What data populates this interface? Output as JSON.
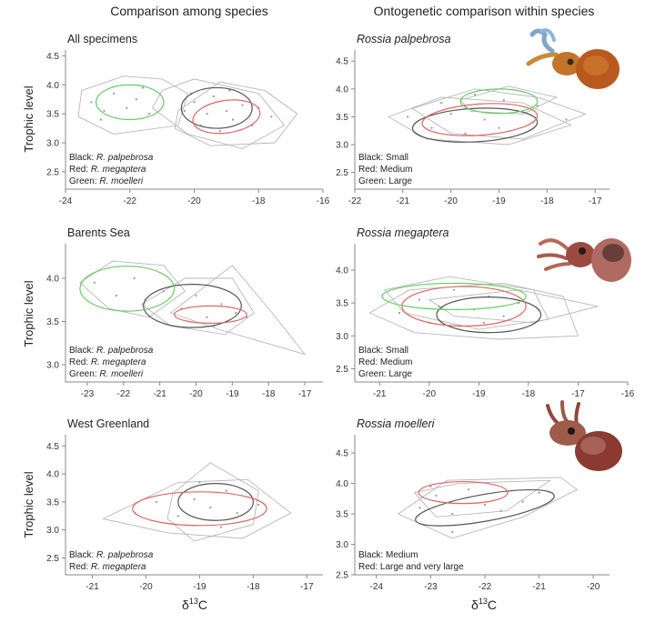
{
  "header": {
    "left_title": "Comparison among species",
    "right_title": "Ontogenetic comparison within species"
  },
  "axis": {
    "y_label": "Trophic level",
    "x_label_main": "δ",
    "x_label_sup": "13",
    "x_label_tail": "C"
  },
  "colors": {
    "black": "#555555",
    "red": "#e06666",
    "green": "#66cc66",
    "hull": "#b8b8b8",
    "points": "#999999",
    "axis": "#888888"
  },
  "chart_data": [
    {
      "id": "all",
      "type": "scatter",
      "title": "All specimens",
      "title_italic": false,
      "xlim": [
        -24,
        -16
      ],
      "xticks": [
        -24,
        -22,
        -20,
        -18,
        -16
      ],
      "xtick_labels": [
        "-24",
        "-22",
        "-20",
        "-18",
        "-16"
      ],
      "ylim": [
        2.2,
        4.6
      ],
      "yticks": [
        2.5,
        3.0,
        3.5,
        4.0,
        4.5
      ],
      "ytick_labels": [
        "2.5",
        "3.0",
        "3.5",
        "4.0",
        "4.5"
      ],
      "legend": [
        "Black: R. palpebrosa",
        "Red: R. megaptera",
        "Green: R. moelleri"
      ],
      "series": [
        {
          "name": "R. palpebrosa",
          "color": "black",
          "ellipse": {
            "cx": -19.3,
            "cy": 3.6,
            "rx": 1.1,
            "ry": 0.35,
            "rot": 0
          }
        },
        {
          "name": "R. megaptera",
          "color": "red",
          "ellipse": {
            "cx": -19.0,
            "cy": 3.45,
            "rx": 1.05,
            "ry": 0.28,
            "rot": -8
          }
        },
        {
          "name": "R. moelleri",
          "color": "green",
          "ellipse": {
            "cx": -22.0,
            "cy": 3.7,
            "rx": 1.05,
            "ry": 0.3,
            "rot": 0
          }
        }
      ],
      "hulls": [
        [
          [
            -23.5,
            3.9
          ],
          [
            -22.2,
            4.15
          ],
          [
            -21.0,
            4.1
          ],
          [
            -20.2,
            3.85
          ],
          [
            -20.5,
            3.3
          ],
          [
            -22.5,
            3.15
          ],
          [
            -23.6,
            3.45
          ]
        ],
        [
          [
            -21.0,
            3.9
          ],
          [
            -20.0,
            4.1
          ],
          [
            -18.0,
            3.85
          ],
          [
            -17.2,
            3.3
          ],
          [
            -18.5,
            2.9
          ],
          [
            -20.2,
            3.15
          ],
          [
            -21.3,
            3.6
          ]
        ],
        [
          [
            -20.5,
            3.55
          ],
          [
            -19.2,
            4.05
          ],
          [
            -17.8,
            3.9
          ],
          [
            -16.8,
            3.5
          ],
          [
            -17.5,
            3.0
          ],
          [
            -19.5,
            2.95
          ],
          [
            -20.6,
            3.25
          ]
        ]
      ],
      "points": [
        [
          -23.2,
          3.7
        ],
        [
          -22.8,
          3.55
        ],
        [
          -22.5,
          3.85
        ],
        [
          -22.1,
          3.6
        ],
        [
          -21.8,
          3.75
        ],
        [
          -21.4,
          3.5
        ],
        [
          -21.6,
          3.95
        ],
        [
          -22.9,
          3.4
        ],
        [
          -20.0,
          3.7
        ],
        [
          -19.6,
          3.5
        ],
        [
          -19.4,
          3.8
        ],
        [
          -19.0,
          3.55
        ],
        [
          -18.8,
          3.4
        ],
        [
          -18.5,
          3.65
        ],
        [
          -18.2,
          3.3
        ],
        [
          -19.8,
          3.3
        ],
        [
          -20.3,
          3.55
        ],
        [
          -18.9,
          3.9
        ],
        [
          -18.0,
          3.6
        ],
        [
          -17.6,
          3.45
        ],
        [
          -19.2,
          3.2
        ],
        [
          -20.1,
          3.85
        ]
      ]
    },
    {
      "id": "palpebrosa",
      "type": "scatter",
      "title": "Rossia palpebrosa",
      "title_italic": true,
      "xlim": [
        -22,
        -16.7
      ],
      "xticks": [
        -22,
        -21,
        -20,
        -19,
        -18,
        -17
      ],
      "xtick_labels": [
        "-22",
        "-21",
        "-20",
        "-19",
        "-18",
        "-17"
      ],
      "ylim": [
        2.2,
        4.7
      ],
      "yticks": [
        2.5,
        3.0,
        3.5,
        4.0,
        4.5
      ],
      "ytick_labels": [
        "2.5",
        "3.0",
        "3.5",
        "4.0",
        "4.5"
      ],
      "legend": [
        "Black: Small",
        "Red: Medium",
        "Green: Large"
      ],
      "series": [
        {
          "name": "Small",
          "color": "black",
          "ellipse": {
            "cx": -19.5,
            "cy": 3.35,
            "rx": 1.3,
            "ry": 0.3,
            "rot": -3
          }
        },
        {
          "name": "Medium",
          "color": "red",
          "ellipse": {
            "cx": -19.4,
            "cy": 3.45,
            "rx": 1.2,
            "ry": 0.28,
            "rot": -4
          }
        },
        {
          "name": "Large",
          "color": "green",
          "ellipse": {
            "cx": -19.0,
            "cy": 3.78,
            "rx": 0.8,
            "ry": 0.22,
            "rot": 0
          }
        }
      ],
      "hulls": [
        [
          [
            -21.3,
            3.5
          ],
          [
            -20.2,
            3.85
          ],
          [
            -18.5,
            3.75
          ],
          [
            -17.5,
            3.35
          ],
          [
            -18.8,
            3.0
          ],
          [
            -20.5,
            3.1
          ]
        ],
        [
          [
            -20.8,
            3.65
          ],
          [
            -19.5,
            4.0
          ],
          [
            -18.2,
            3.85
          ],
          [
            -17.2,
            3.55
          ],
          [
            -18.5,
            3.1
          ],
          [
            -20.0,
            3.2
          ]
        ],
        [
          [
            -19.8,
            3.8
          ],
          [
            -18.8,
            4.05
          ],
          [
            -17.8,
            3.85
          ],
          [
            -18.5,
            3.55
          ],
          [
            -19.6,
            3.6
          ]
        ]
      ],
      "points": [
        [
          -20.9,
          3.5
        ],
        [
          -20.4,
          3.3
        ],
        [
          -20.0,
          3.55
        ],
        [
          -19.7,
          3.2
        ],
        [
          -19.3,
          3.45
        ],
        [
          -19.0,
          3.3
        ],
        [
          -18.6,
          3.6
        ],
        [
          -18.3,
          3.4
        ],
        [
          -20.2,
          3.75
        ],
        [
          -19.5,
          3.9
        ],
        [
          -18.9,
          3.8
        ],
        [
          -18.2,
          3.7
        ],
        [
          -17.6,
          3.45
        ]
      ]
    },
    {
      "id": "barents",
      "type": "scatter",
      "title": "Barents Sea",
      "title_italic": false,
      "xlim": [
        -23.6,
        -16.5
      ],
      "xticks": [
        -23,
        -22,
        -21,
        -20,
        -19,
        -18,
        -17
      ],
      "xtick_labels": [
        "-23",
        "-22",
        "-21",
        "-20",
        "-19",
        "-18",
        "-17"
      ],
      "ylim": [
        2.8,
        4.4
      ],
      "yticks": [
        3.0,
        3.5,
        4.0
      ],
      "ytick_labels": [
        "3.0",
        "3.5",
        "4.0"
      ],
      "legend": [
        "Black: R. palpebrosa",
        "Red: R. megaptera",
        "Green: R. moelleri"
      ],
      "series": [
        {
          "name": "R. palpebrosa",
          "color": "black",
          "ellipse": {
            "cx": -20.1,
            "cy": 3.68,
            "rx": 1.35,
            "ry": 0.25,
            "rot": 0
          }
        },
        {
          "name": "R. megaptera",
          "color": "red",
          "ellipse": {
            "cx": -19.6,
            "cy": 3.58,
            "rx": 1.0,
            "ry": 0.1,
            "rot": 0
          }
        },
        {
          "name": "R. moelleri",
          "color": "green",
          "ellipse": {
            "cx": -21.9,
            "cy": 3.88,
            "rx": 1.3,
            "ry": 0.26,
            "rot": 0
          }
        }
      ],
      "hulls": [
        [
          [
            -23.2,
            3.95
          ],
          [
            -22.3,
            4.2
          ],
          [
            -20.9,
            4.15
          ],
          [
            -20.3,
            3.85
          ],
          [
            -21.3,
            3.55
          ],
          [
            -22.4,
            3.65
          ]
        ],
        [
          [
            -21.5,
            3.7
          ],
          [
            -20.3,
            4.0
          ],
          [
            -19.0,
            4.0
          ],
          [
            -18.4,
            3.6
          ],
          [
            -19.2,
            3.35
          ],
          [
            -20.7,
            3.45
          ]
        ],
        [
          [
            -20.7,
            3.6
          ],
          [
            -19.0,
            4.15
          ],
          [
            -17.9,
            3.6
          ],
          [
            -17.0,
            3.12
          ],
          [
            -19.3,
            3.4
          ]
        ]
      ],
      "points": [
        [
          -22.8,
          3.95
        ],
        [
          -22.2,
          3.8
        ],
        [
          -21.7,
          4.0
        ],
        [
          -21.4,
          3.75
        ],
        [
          -20.9,
          3.85
        ],
        [
          -20.4,
          3.65
        ],
        [
          -20.0,
          3.8
        ],
        [
          -19.7,
          3.55
        ],
        [
          -19.3,
          3.7
        ],
        [
          -18.9,
          3.6
        ],
        [
          -18.6,
          3.55
        ],
        [
          -19.5,
          3.45
        ]
      ]
    },
    {
      "id": "megaptera",
      "type": "scatter",
      "title": "Rossia megaptera",
      "title_italic": true,
      "xlim": [
        -21.5,
        -16
      ],
      "xticks": [
        -21,
        -20,
        -19,
        -18,
        -17,
        -16
      ],
      "xtick_labels": [
        "-21",
        "-20",
        "-19",
        "-18",
        "-17",
        "-16"
      ],
      "ylim": [
        2.3,
        4.4
      ],
      "yticks": [
        2.5,
        3.0,
        3.5,
        4.0
      ],
      "ytick_labels": [
        "2.5",
        "3.0",
        "3.5",
        "4.0"
      ],
      "legend": [
        "Black: Small",
        "Red: Medium",
        "Green: Large"
      ],
      "series": [
        {
          "name": "Small",
          "color": "black",
          "ellipse": {
            "cx": -18.8,
            "cy": 3.32,
            "rx": 1.05,
            "ry": 0.27,
            "rot": 0
          }
        },
        {
          "name": "Medium",
          "color": "red",
          "ellipse": {
            "cx": -19.3,
            "cy": 3.45,
            "rx": 1.25,
            "ry": 0.3,
            "rot": 0
          }
        },
        {
          "name": "Large",
          "color": "green",
          "ellipse": {
            "cx": -19.5,
            "cy": 3.6,
            "rx": 1.45,
            "ry": 0.2,
            "rot": 0
          }
        }
      ],
      "hulls": [
        [
          [
            -21.2,
            3.35
          ],
          [
            -20.4,
            3.7
          ],
          [
            -18.5,
            3.8
          ],
          [
            -17.3,
            3.6
          ],
          [
            -17.0,
            3.0
          ],
          [
            -18.6,
            2.95
          ],
          [
            -20.3,
            3.05
          ]
        ],
        [
          [
            -20.9,
            3.7
          ],
          [
            -19.6,
            3.9
          ],
          [
            -17.9,
            3.7
          ],
          [
            -17.6,
            3.25
          ],
          [
            -19.0,
            3.1
          ],
          [
            -20.5,
            3.35
          ]
        ],
        [
          [
            -20.0,
            3.55
          ],
          [
            -18.2,
            3.7
          ],
          [
            -16.6,
            3.45
          ],
          [
            -17.9,
            3.2
          ],
          [
            -19.5,
            3.3
          ]
        ]
      ],
      "points": [
        [
          -20.6,
          3.35
        ],
        [
          -20.2,
          3.55
        ],
        [
          -19.8,
          3.45
        ],
        [
          -19.5,
          3.7
        ],
        [
          -19.1,
          3.4
        ],
        [
          -18.8,
          3.6
        ],
        [
          -18.5,
          3.3
        ],
        [
          -18.2,
          3.5
        ],
        [
          -17.8,
          3.4
        ],
        [
          -19.4,
          3.15
        ],
        [
          -18.9,
          3.2
        ],
        [
          -20.0,
          3.2
        ]
      ]
    },
    {
      "id": "greenland",
      "type": "scatter",
      "title": "West Greenland",
      "title_italic": false,
      "xlim": [
        -21.5,
        -16.7
      ],
      "xticks": [
        -21,
        -20,
        -19,
        -18,
        -17
      ],
      "xtick_labels": [
        "-21",
        "-20",
        "-19",
        "-18",
        "-17"
      ],
      "ylim": [
        2.2,
        4.7
      ],
      "yticks": [
        2.5,
        3.0,
        3.5,
        4.0,
        4.5
      ],
      "ytick_labels": [
        "2.5",
        "3.0",
        "3.5",
        "4.0",
        "4.5"
      ],
      "legend": [
        "Black: R. palpebrosa",
        "Red: R. megaptera"
      ],
      "series": [
        {
          "name": "R. palpebrosa",
          "color": "black",
          "ellipse": {
            "cx": -18.7,
            "cy": 3.5,
            "rx": 0.7,
            "ry": 0.33,
            "rot": 0
          }
        },
        {
          "name": "R. megaptera",
          "color": "red",
          "ellipse": {
            "cx": -19.0,
            "cy": 3.38,
            "rx": 1.25,
            "ry": 0.3,
            "rot": 0
          }
        }
      ],
      "hulls": [
        [
          [
            -20.8,
            3.2
          ],
          [
            -19.4,
            3.85
          ],
          [
            -18.1,
            3.9
          ],
          [
            -17.3,
            3.3
          ],
          [
            -18.2,
            2.85
          ],
          [
            -19.6,
            2.95
          ]
        ],
        [
          [
            -19.5,
            3.65
          ],
          [
            -18.8,
            4.2
          ],
          [
            -17.9,
            3.7
          ],
          [
            -18.0,
            3.1
          ],
          [
            -19.1,
            2.8
          ],
          [
            -19.6,
            3.2
          ]
        ]
      ],
      "points": [
        [
          -20.2,
          3.3
        ],
        [
          -19.8,
          3.5
        ],
        [
          -19.4,
          3.25
        ],
        [
          -19.1,
          3.55
        ],
        [
          -18.8,
          3.4
        ],
        [
          -18.5,
          3.7
        ],
        [
          -18.3,
          3.3
        ],
        [
          -18.6,
          3.05
        ],
        [
          -19.0,
          3.85
        ],
        [
          -17.9,
          3.45
        ]
      ]
    },
    {
      "id": "moelleri",
      "type": "scatter",
      "title": "Rossia moelleri",
      "title_italic": true,
      "xlim": [
        -24.4,
        -19.7
      ],
      "xticks": [
        -24,
        -23,
        -22,
        -21,
        -20
      ],
      "xtick_labels": [
        "-24",
        "-23",
        "-22",
        "-21",
        "-20"
      ],
      "ylim": [
        2.5,
        4.8
      ],
      "yticks": [
        2.5,
        3.0,
        3.5,
        4.0,
        4.5
      ],
      "ytick_labels": [
        "2.5",
        "3.0",
        "3.5",
        "4.0",
        "4.5"
      ],
      "legend": [
        "Black: Medium",
        "Red: Large and very large"
      ],
      "series": [
        {
          "name": "Medium",
          "color": "black",
          "ellipse": {
            "cx": -22.0,
            "cy": 3.6,
            "rx": 1.3,
            "ry": 0.22,
            "rot": -10
          }
        },
        {
          "name": "Large and very large",
          "color": "red",
          "ellipse": {
            "cx": -22.4,
            "cy": 3.85,
            "rx": 0.82,
            "ry": 0.18,
            "rot": 0
          }
        }
      ],
      "hulls": [
        [
          [
            -23.6,
            3.5
          ],
          [
            -22.7,
            4.05
          ],
          [
            -20.6,
            4.1
          ],
          [
            -20.3,
            3.9
          ],
          [
            -21.3,
            3.45
          ],
          [
            -22.6,
            3.1
          ]
        ],
        [
          [
            -23.3,
            3.85
          ],
          [
            -22.5,
            4.0
          ],
          [
            -20.8,
            4.05
          ],
          [
            -21.6,
            3.55
          ],
          [
            -22.9,
            3.45
          ]
        ]
      ],
      "points": [
        [
          -23.2,
          3.6
        ],
        [
          -22.9,
          3.8
        ],
        [
          -22.6,
          3.5
        ],
        [
          -22.3,
          3.9
        ],
        [
          -22.0,
          3.65
        ],
        [
          -21.7,
          3.55
        ],
        [
          -21.3,
          3.7
        ],
        [
          -21.0,
          3.85
        ],
        [
          -22.6,
          3.2
        ],
        [
          -23.0,
          3.95
        ]
      ]
    }
  ]
}
